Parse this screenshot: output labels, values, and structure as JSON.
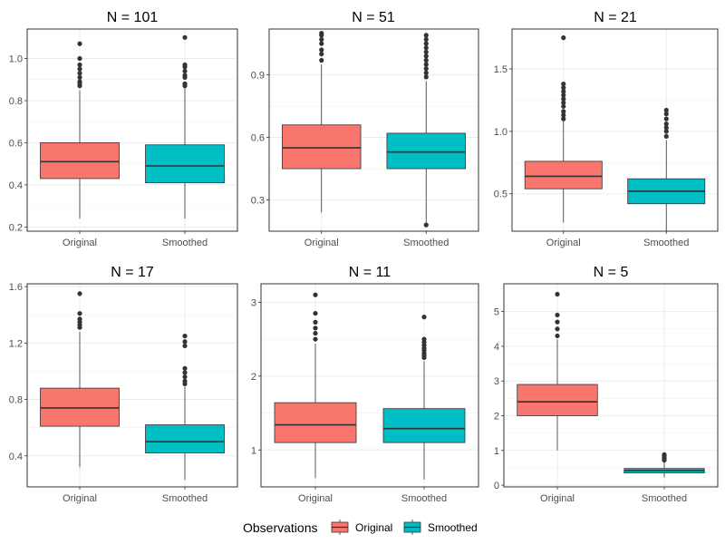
{
  "chart_data": {
    "type": "boxplot",
    "categories": [
      "Original",
      "Smoothed"
    ],
    "colors": {
      "Original": "#F8766D",
      "Smoothed": "#00BFC4"
    },
    "legend": {
      "title": "Observations",
      "position": "bottom",
      "labels": [
        "Original",
        "Smoothed"
      ]
    },
    "panels": [
      {
        "title": "N = 101",
        "ylim": [
          0.18,
          1.14
        ],
        "yticks": [
          0.2,
          0.4,
          0.6,
          0.8,
          1.0
        ],
        "ytick_labels": [
          "0.2",
          "0.4",
          "0.6",
          "0.8",
          "1.0"
        ],
        "boxes": [
          {
            "name": "Original",
            "lower_whisker": 0.24,
            "q1": 0.43,
            "median": 0.51,
            "q3": 0.6,
            "upper_whisker": 0.85,
            "outliers": [
              0.87,
              0.88,
              0.89,
              0.91,
              0.93,
              0.95,
              0.97,
              1.0,
              1.07
            ]
          },
          {
            "name": "Smoothed",
            "lower_whisker": 0.24,
            "q1": 0.41,
            "median": 0.49,
            "q3": 0.59,
            "upper_whisker": 0.86,
            "outliers": [
              0.87,
              0.88,
              0.91,
              0.92,
              0.94,
              0.96,
              0.97,
              1.1
            ]
          }
        ]
      },
      {
        "title": "N = 51",
        "ylim": [
          0.15,
          1.12
        ],
        "yticks": [
          0.3,
          0.6,
          0.9
        ],
        "ytick_labels": [
          "0.3",
          "0.6",
          "0.9"
        ],
        "boxes": [
          {
            "name": "Original",
            "lower_whisker": 0.24,
            "q1": 0.45,
            "median": 0.55,
            "q3": 0.66,
            "upper_whisker": 0.95,
            "outliers": [
              0.97,
              1.0,
              1.02,
              1.05,
              1.07,
              1.09,
              1.1
            ]
          },
          {
            "name": "Smoothed",
            "lower_whisker": 0.19,
            "q1": 0.45,
            "median": 0.53,
            "q3": 0.62,
            "upper_whisker": 0.87,
            "outliers": [
              0.18,
              0.89,
              0.91,
              0.93,
              0.95,
              0.97,
              0.99,
              1.01,
              1.03,
              1.05,
              1.07,
              1.09
            ]
          }
        ]
      },
      {
        "title": "N = 21",
        "ylim": [
          0.2,
          1.82
        ],
        "yticks": [
          0.5,
          1.0,
          1.5
        ],
        "ytick_labels": [
          "0.5",
          "1.0",
          "1.5"
        ],
        "boxes": [
          {
            "name": "Original",
            "lower_whisker": 0.27,
            "q1": 0.54,
            "median": 0.64,
            "q3": 0.76,
            "upper_whisker": 1.08,
            "outliers": [
              1.1,
              1.13,
              1.16,
              1.2,
              1.23,
              1.26,
              1.29,
              1.32,
              1.35,
              1.38,
              1.75
            ]
          },
          {
            "name": "Smoothed",
            "lower_whisker": 0.2,
            "q1": 0.42,
            "median": 0.52,
            "q3": 0.62,
            "upper_whisker": 0.93,
            "outliers": [
              0.96,
              1.0,
              1.03,
              1.06,
              1.1,
              1.14,
              1.17
            ]
          }
        ]
      },
      {
        "title": "N = 17",
        "ylim": [
          0.18,
          1.62
        ],
        "yticks": [
          0.4,
          0.8,
          1.2,
          1.6
        ],
        "ytick_labels": [
          "0.4",
          "0.8",
          "1.2",
          "1.6"
        ],
        "boxes": [
          {
            "name": "Original",
            "lower_whisker": 0.32,
            "q1": 0.61,
            "median": 0.74,
            "q3": 0.88,
            "upper_whisker": 1.28,
            "outliers": [
              1.31,
              1.33,
              1.35,
              1.37,
              1.41,
              1.55
            ]
          },
          {
            "name": "Smoothed",
            "lower_whisker": 0.23,
            "q1": 0.42,
            "median": 0.5,
            "q3": 0.62,
            "upper_whisker": 0.89,
            "outliers": [
              0.91,
              0.93,
              0.96,
              0.99,
              1.02,
              1.18,
              1.21,
              1.25
            ]
          }
        ]
      },
      {
        "title": "N = 11",
        "ylim": [
          0.5,
          3.25
        ],
        "yticks": [
          1,
          2,
          3
        ],
        "ytick_labels": [
          "1",
          "2",
          "3"
        ],
        "boxes": [
          {
            "name": "Original",
            "lower_whisker": 0.62,
            "q1": 1.1,
            "median": 1.34,
            "q3": 1.64,
            "upper_whisker": 2.44,
            "outliers": [
              2.5,
              2.58,
              2.65,
              2.73,
              2.85,
              3.1
            ]
          },
          {
            "name": "Smoothed",
            "lower_whisker": 0.6,
            "q1": 1.1,
            "median": 1.29,
            "q3": 1.56,
            "upper_whisker": 2.2,
            "outliers": [
              2.25,
              2.28,
              2.31,
              2.35,
              2.38,
              2.42,
              2.46,
              2.5,
              2.8
            ]
          }
        ]
      },
      {
        "title": "N = 5",
        "ylim": [
          -0.05,
          5.8
        ],
        "yticks": [
          0,
          1,
          2,
          3,
          4,
          5
        ],
        "ytick_labels": [
          "0",
          "1",
          "2",
          "3",
          "4",
          "5"
        ],
        "boxes": [
          {
            "name": "Original",
            "lower_whisker": 1.0,
            "q1": 2.0,
            "median": 2.4,
            "q3": 2.9,
            "upper_whisker": 4.2,
            "outliers": [
              4.3,
              4.5,
              4.7,
              4.9,
              5.5
            ]
          },
          {
            "name": "Smoothed",
            "lower_whisker": 0.22,
            "q1": 0.35,
            "median": 0.42,
            "q3": 0.48,
            "upper_whisker": 0.68,
            "outliers": [
              0.72,
              0.76,
              0.8,
              0.84,
              0.88
            ]
          }
        ]
      }
    ]
  }
}
